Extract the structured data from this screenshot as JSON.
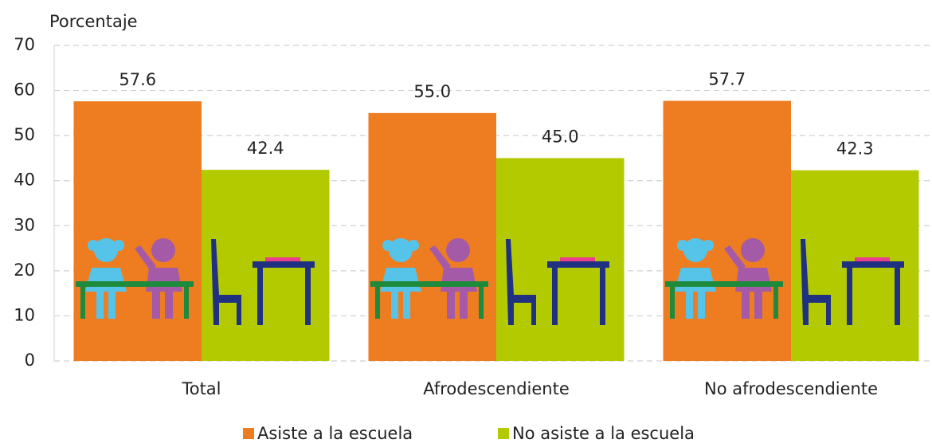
{
  "chart_data": {
    "type": "bar",
    "y_label": "Porcentaje",
    "categories": [
      "Total",
      "Afrodescendiente",
      "No afrodescendiente"
    ],
    "series": [
      {
        "name": "Asiste a la escuela",
        "color": "#ee7d22",
        "values": [
          57.6,
          55.0,
          57.7
        ],
        "value_labels": [
          "57.6",
          "55.0",
          "57.7"
        ]
      },
      {
        "name": "No asiste a la escuela",
        "color": "#b4ca00",
        "values": [
          42.4,
          45.0,
          42.3
        ],
        "value_labels": [
          "42.4",
          "45.0",
          "42.3"
        ]
      }
    ],
    "ylim": [
      0,
      70
    ],
    "yticks": [
      0,
      10,
      20,
      30,
      40,
      50,
      60,
      70
    ],
    "grid": true,
    "legend": "bottom"
  }
}
